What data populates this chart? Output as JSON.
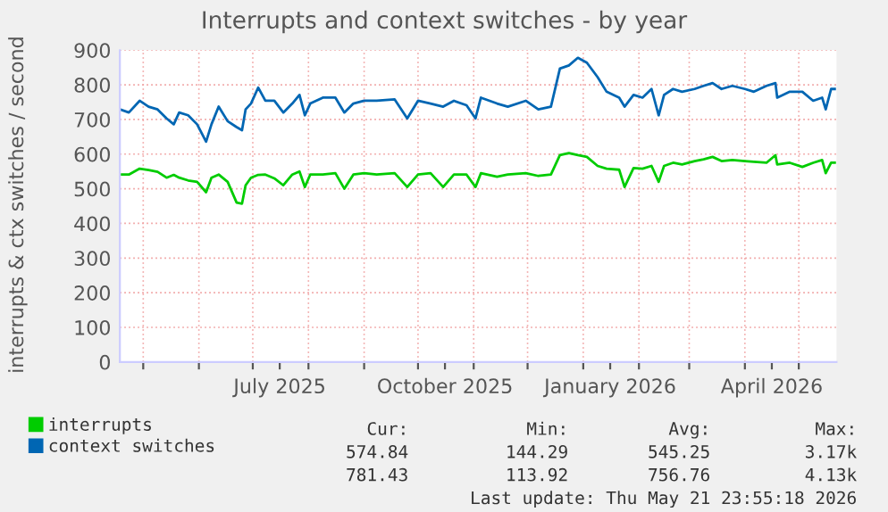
{
  "chart_data": {
    "type": "line",
    "title": "Interrupts and context switches - by year",
    "ylabel": "interrupts & ctx switches / second",
    "x": [
      "2025-04-18",
      "2025-04-23",
      "2025-04-29",
      "2025-05-04",
      "2025-05-09",
      "2025-05-14",
      "2025-05-18",
      "2025-05-21",
      "2025-05-26",
      "2025-05-31",
      "2025-06-05",
      "2025-06-08",
      "2025-06-12",
      "2025-06-17",
      "2025-06-22",
      "2025-06-25",
      "2025-06-27",
      "2025-06-30",
      "2025-07-04",
      "2025-07-08",
      "2025-07-13",
      "2025-07-18",
      "2025-07-23",
      "2025-07-27",
      "2025-07-30",
      "2025-08-02",
      "2025-08-09",
      "2025-08-16",
      "2025-08-21",
      "2025-08-26",
      "2025-09-01",
      "2025-09-08",
      "2025-09-18",
      "2025-09-25",
      "2025-10-01",
      "2025-10-08",
      "2025-10-15",
      "2025-10-21",
      "2025-10-28",
      "2025-11-02",
      "2025-11-05",
      "2025-11-14",
      "2025-11-20",
      "2025-11-30",
      "2025-12-07",
      "2025-12-14",
      "2025-12-19",
      "2025-12-24",
      "2025-12-29",
      "2026-01-03",
      "2026-01-09",
      "2026-01-14",
      "2026-01-21",
      "2026-01-24",
      "2026-01-29",
      "2026-02-03",
      "2026-02-08",
      "2026-02-12",
      "2026-02-15",
      "2026-02-20",
      "2026-02-25",
      "2026-03-04",
      "2026-03-09",
      "2026-03-14",
      "2026-03-19",
      "2026-03-25",
      "2026-04-01",
      "2026-04-06",
      "2026-04-13",
      "2026-04-18",
      "2026-04-19",
      "2026-04-26",
      "2026-05-03",
      "2026-05-09",
      "2026-05-14",
      "2026-05-16",
      "2026-05-19",
      "2026-05-21"
    ],
    "series": [
      {
        "name": "interrupts",
        "color": "#00cc00",
        "values": [
          541,
          541,
          558,
          554,
          549,
          532,
          540,
          532,
          524,
          520,
          490,
          532,
          541,
          520,
          460,
          457,
          510,
          532,
          540,
          541,
          530,
          510,
          541,
          550,
          505,
          541,
          541,
          545,
          500,
          541,
          545,
          541,
          545,
          505,
          541,
          545,
          505,
          541,
          541,
          505,
          545,
          535,
          541,
          545,
          537,
          541,
          597,
          603,
          597,
          592,
          566,
          558,
          555,
          505,
          560,
          558,
          566,
          520,
          566,
          575,
          570,
          580,
          585,
          592,
          580,
          583,
          580,
          578,
          575,
          597,
          570,
          575,
          563,
          575,
          583,
          545,
          575,
          575
        ]
      },
      {
        "name": "context switches",
        "color": "#0066b3",
        "values": [
          729,
          720,
          754,
          737,
          729,
          703,
          686,
          720,
          712,
          686,
          636,
          686,
          737,
          695,
          678,
          669,
          729,
          746,
          792,
          754,
          754,
          720,
          746,
          771,
          712,
          746,
          763,
          763,
          720,
          746,
          754,
          754,
          758,
          703,
          754,
          746,
          737,
          754,
          741,
          703,
          763,
          746,
          737,
          754,
          729,
          737,
          847,
          856,
          878,
          864,
          822,
          780,
          763,
          737,
          771,
          763,
          788,
          712,
          771,
          788,
          780,
          788,
          797,
          805,
          788,
          797,
          788,
          780,
          797,
          805,
          763,
          780,
          780,
          754,
          763,
          729,
          788,
          788
        ]
      }
    ],
    "xlim": [
      "2025-04-18",
      "2026-05-22"
    ],
    "xticks": [
      {
        "value": "2025-05-01",
        "label": null
      },
      {
        "value": "2025-06-01",
        "label": null
      },
      {
        "value": "2025-07-01",
        "label": null
      },
      {
        "value": "2025-07-16",
        "label": "July 2025"
      },
      {
        "value": "2025-08-01",
        "label": null
      },
      {
        "value": "2025-09-01",
        "label": null
      },
      {
        "value": "2025-10-01",
        "label": null
      },
      {
        "value": "2025-10-16",
        "label": "October 2025"
      },
      {
        "value": "2025-11-01",
        "label": null
      },
      {
        "value": "2025-12-01",
        "label": null
      },
      {
        "value": "2026-01-01",
        "label": null
      },
      {
        "value": "2026-01-16",
        "label": "January 2026"
      },
      {
        "value": "2026-02-01",
        "label": null
      },
      {
        "value": "2026-03-01",
        "label": null
      },
      {
        "value": "2026-04-01",
        "label": null
      },
      {
        "value": "2026-04-16",
        "label": "April 2026"
      },
      {
        "value": "2026-05-01",
        "label": null
      }
    ],
    "ylim": [
      0,
      900
    ],
    "yticks": [
      0,
      100,
      200,
      300,
      400,
      500,
      600,
      700,
      800,
      900
    ],
    "grid": true,
    "legend": "bottom left",
    "marker": "none",
    "line_style": "solid",
    "annotations": [
      "Cur:",
      "Min:",
      "Avg:",
      "Max:",
      "574.84",
      "144.29",
      "545.25",
      "3.17k",
      "781.43",
      "113.92",
      "756.76",
      "4.13k",
      "Last update: Thu May 21 23:55:18 2026"
    ]
  }
}
